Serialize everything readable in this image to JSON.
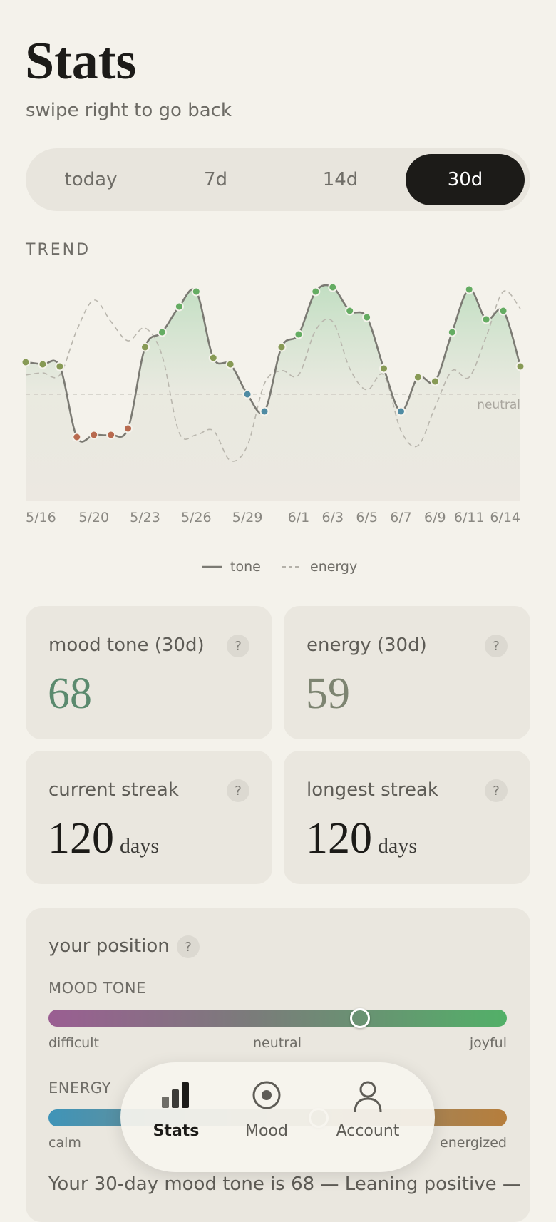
{
  "header": {
    "title": "Stats",
    "subtitle": "swipe right to go back"
  },
  "range_tabs": {
    "options": [
      "today",
      "7d",
      "14d",
      "30d"
    ],
    "selected": 3
  },
  "section_label": "TREND",
  "chart_data": {
    "type": "line",
    "categories": [
      "5/16",
      null,
      null,
      null,
      "5/20",
      null,
      null,
      "5/23",
      null,
      null,
      "5/26",
      null,
      null,
      "5/29",
      null,
      null,
      "6/1",
      null,
      "6/3",
      null,
      "6/5",
      null,
      "6/7",
      null,
      "6/9",
      null,
      "6/11",
      null,
      null,
      "6/14"
    ],
    "series": [
      {
        "name": "tone",
        "color": "#7b7a73",
        "style": "solid",
        "markers": true,
        "values": [
          65,
          64,
          63,
          30,
          31,
          31,
          34,
          72,
          79,
          91,
          98,
          67,
          64,
          50,
          42,
          72,
          78,
          98,
          100,
          89,
          86,
          62,
          42,
          58,
          56,
          79,
          99,
          85,
          89,
          63
        ]
      },
      {
        "name": "energy",
        "color": "#b9b6ad",
        "style": "dashed",
        "markers": false,
        "values": [
          59,
          60,
          59,
          80,
          94,
          84,
          75,
          81,
          68,
          32,
          31,
          33,
          19,
          26,
          55,
          61,
          59,
          80,
          84,
          62,
          52,
          59,
          33,
          26,
          44,
          61,
          58,
          77,
          98,
          90
        ]
      }
    ],
    "ylim": [
      0,
      100
    ],
    "annotations": [
      {
        "text": "neutral",
        "y": 50
      }
    ],
    "legend": "bottom"
  },
  "cards": [
    {
      "label": "mood tone (30d)",
      "value": 68,
      "help": "?",
      "color": "#5b8a6e"
    },
    {
      "label": "energy (30d)",
      "value": 59,
      "help": "?",
      "color": "#7d8471"
    },
    {
      "label": "current streak",
      "value": 120,
      "unit": "days",
      "help": "?",
      "color": "#1c1b18"
    },
    {
      "label": "longest streak",
      "value": 120,
      "unit": "days",
      "help": "?",
      "color": "#1c1b18"
    }
  ],
  "position": {
    "title": "your position",
    "help": "?",
    "range": [
      0,
      100
    ],
    "scales": [
      {
        "label": "MOOD TONE",
        "ends": [
          "difficult",
          "neutral",
          "joyful"
        ]
      },
      {
        "label": "ENERGY",
        "ends": [
          "calm",
          "energized"
        ]
      }
    ],
    "summary": "Your 30-day mood tone is 68 — Leaning positive —"
  },
  "nav": [
    {
      "label": "Stats",
      "active": true
    },
    {
      "label": "Mood",
      "active": false
    },
    {
      "label": "Account",
      "active": false
    }
  ]
}
